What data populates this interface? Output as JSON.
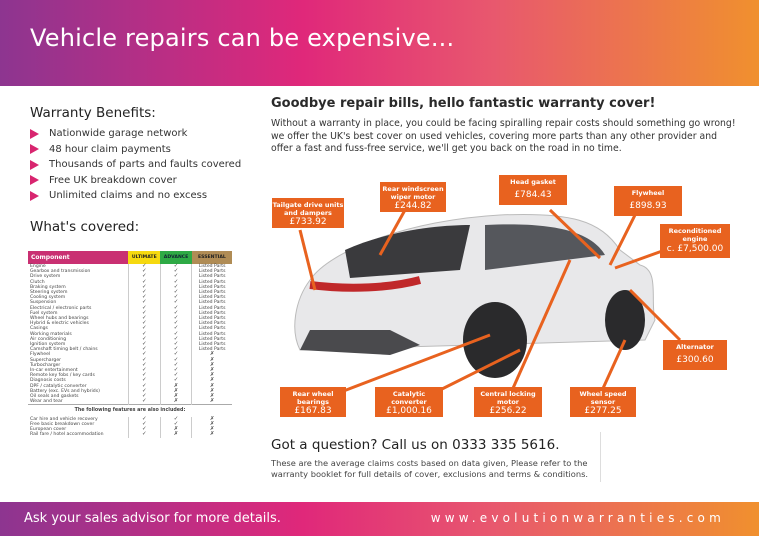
{
  "header": {
    "title": "Vehicle repairs can be expensive..."
  },
  "benefits": {
    "title": "Warranty Benefits:",
    "items": [
      "Nationwide garage network",
      "48 hour claim payments",
      "Thousands of parts and faults covered",
      "Free UK breakdown cover",
      "Unlimited claims and no excess"
    ]
  },
  "covered": {
    "title": "What's covered:",
    "columns": [
      "Component",
      "ULTIMATE",
      "ADVANCE",
      "ESSENTIAL"
    ],
    "rows": [
      [
        "Engine",
        "✓",
        "✓",
        "Listed Parts"
      ],
      [
        "Gearbox and transmission",
        "✓",
        "✓",
        "Listed Parts"
      ],
      [
        "Drive system",
        "✓",
        "✓",
        "Listed Parts"
      ],
      [
        "Clutch",
        "✓",
        "✓",
        "Listed Parts"
      ],
      [
        "Braking system",
        "✓",
        "✓",
        "Listed Parts"
      ],
      [
        "Steering system",
        "✓",
        "✓",
        "Listed Parts"
      ],
      [
        "Cooling system",
        "✓",
        "✓",
        "Listed Parts"
      ],
      [
        "Suspension",
        "✓",
        "✓",
        "Listed Parts"
      ],
      [
        "Electrical / electronic parts",
        "✓",
        "✓",
        "Listed Parts"
      ],
      [
        "Fuel system",
        "✓",
        "✓",
        "Listed Parts"
      ],
      [
        "Wheel hubs and bearings",
        "✓",
        "✓",
        "Listed Parts"
      ],
      [
        "Hybrid & electric vehicles",
        "✓",
        "✓",
        "Listed Parts"
      ],
      [
        "Casings",
        "✓",
        "✓",
        "Listed Parts"
      ],
      [
        "Working materials",
        "✓",
        "✓",
        "Listed Parts"
      ],
      [
        "Air conditioning",
        "✓",
        "✓",
        "Listed Parts"
      ],
      [
        "Ignition system",
        "✓",
        "✓",
        "Listed Parts"
      ],
      [
        "Camshaft timing belt / chains",
        "✓",
        "✓",
        "Listed Parts"
      ],
      [
        "Flywheel",
        "✓",
        "✓",
        "✗"
      ],
      [
        "Supercharger",
        "✓",
        "✓",
        "✗"
      ],
      [
        "Turbocharger",
        "✓",
        "✓",
        "✗"
      ],
      [
        "In-car entertainment",
        "✓",
        "✓",
        "✗"
      ],
      [
        "Remote key fobs / key cards",
        "✓",
        "✓",
        "✗"
      ],
      [
        "Diagnosis costs",
        "✓",
        "✓",
        "✗"
      ],
      [
        "DPF / catalytic converter",
        "✓",
        "✗",
        "✗"
      ],
      [
        "Battery (exc. EVs and hybrids)",
        "✓",
        "✗",
        "✗"
      ],
      [
        "Oil seals and gaskets",
        "✓",
        "✗",
        "✗"
      ],
      [
        "Wear and tear",
        "✓",
        "✗",
        "✗"
      ]
    ],
    "extras_title": "The following features are also included:",
    "extras": [
      [
        "Car hire and vehicle recovery",
        "✓",
        "✓",
        "✗"
      ],
      [
        "Free basic breakdown cover",
        "✓",
        "✓",
        "✗"
      ],
      [
        "European cover",
        "✓",
        "✗",
        "✗"
      ],
      [
        "Rail fare / hotel accommodation",
        "✓",
        "✗",
        "✗"
      ]
    ]
  },
  "main": {
    "title": "Goodbye repair bills, hello fantastic warranty cover!",
    "intro": "Without a warranty in place, you could be facing spiralling repair costs should something go wrong! we offer the UK's best cover on used vehicles, covering more parts than any other provider and offer a fast and fuss-free service, we'll get you back on the road in no time."
  },
  "callouts": [
    {
      "label": "Tailgate drive units and dampers",
      "price": "£733.92"
    },
    {
      "label": "Rear windscreen wiper motor",
      "price": "£244.82"
    },
    {
      "label": "Head gasket",
      "price": "£784.43"
    },
    {
      "label": "Flywheel",
      "price": "£898.93"
    },
    {
      "label": "Reconditioned engine",
      "price": "c. £7,500.00"
    },
    {
      "label": "Alternator",
      "price": "£300.60"
    },
    {
      "label": "Rear wheel bearings",
      "price": "£167.83"
    },
    {
      "label": "Catalytic converter",
      "price": "£1,000.16"
    },
    {
      "label": "Central locking motor",
      "price": "£256.22"
    },
    {
      "label": "Wheel speed sensor",
      "price": "£277.25"
    }
  ],
  "question": {
    "title": "Got a question? Call us on 0333 335 5616.",
    "note": "These are the average claims costs based on data given, Please refer to the warranty booklet for full details of cover, exclusions and terms & conditions."
  },
  "footer": {
    "left": "Ask your sales advisor for more details.",
    "right": "www.evolutionwarranties.com"
  },
  "colors": {
    "accent": "#d8256f",
    "callout": "#e8621f"
  }
}
